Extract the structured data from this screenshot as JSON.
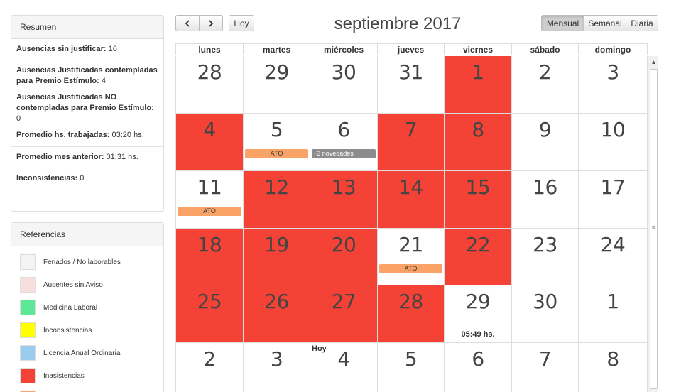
{
  "resumen": {
    "title": "Resumen",
    "rows": [
      {
        "label": "Ausencias sin justificar:",
        "value": "16"
      },
      {
        "label": "Ausencias Justificadas contempladas para Premio Estímulo:",
        "value": "4"
      },
      {
        "label": "Ausencias Justificadas NO contempladas para Premio Estímulo:",
        "value": "0"
      },
      {
        "label": "Promedio hs. trabajadas:",
        "value": "03:20 hs."
      },
      {
        "label": "Promedio mes anterior:",
        "value": "01:31 hs."
      },
      {
        "label": "Inconsistencias:",
        "value": "0"
      }
    ]
  },
  "referencias": {
    "title": "Referencias",
    "items": [
      {
        "label": "Feriados / No laborables",
        "color": "#f4f4f4"
      },
      {
        "label": "Ausentes sin Aviso",
        "color": "#f9dede"
      },
      {
        "label": "Medicina Laboral",
        "color": "#5ce897"
      },
      {
        "label": "Inconsistencias",
        "color": "#ffff00"
      },
      {
        "label": "Licencia Anual Ordinaria",
        "color": "#99ccee"
      },
      {
        "label": "Inasistencias",
        "color": "#f44336"
      },
      {
        "label": "",
        "color": "#f9a466"
      }
    ]
  },
  "toolbar": {
    "prev_icon": "chevron-left-icon",
    "next_icon": "chevron-right-icon",
    "today_label": "Hoy",
    "title": "septiembre 2017",
    "views": [
      "Mensual",
      "Semanal",
      "Diaria"
    ],
    "active_view": "Mensual"
  },
  "calendar": {
    "weekdays": [
      "lunes",
      "martes",
      "miércoles",
      "jueves",
      "viernes",
      "sábado",
      "domingo"
    ],
    "weeks": [
      [
        {
          "d": "28"
        },
        {
          "d": "29"
        },
        {
          "d": "30"
        },
        {
          "d": "31"
        },
        {
          "d": "1",
          "red": true
        },
        {
          "d": "2"
        },
        {
          "d": "3"
        }
      ],
      [
        {
          "d": "4",
          "red": true
        },
        {
          "d": "5",
          "event": "ATO",
          "etype": "ato"
        },
        {
          "d": "6",
          "event": "+3 novedades",
          "etype": "nov"
        },
        {
          "d": "7",
          "red": true
        },
        {
          "d": "8",
          "red": true
        },
        {
          "d": "9"
        },
        {
          "d": "10"
        }
      ],
      [
        {
          "d": "11",
          "event": "ATO",
          "etype": "ato"
        },
        {
          "d": "12",
          "red": true
        },
        {
          "d": "13",
          "red": true
        },
        {
          "d": "14",
          "red": true
        },
        {
          "d": "15",
          "red": true
        },
        {
          "d": "16"
        },
        {
          "d": "17"
        }
      ],
      [
        {
          "d": "18",
          "red": true
        },
        {
          "d": "19",
          "red": true
        },
        {
          "d": "20",
          "red": true
        },
        {
          "d": "21",
          "event": "ATO",
          "etype": "ato"
        },
        {
          "d": "22",
          "red": true
        },
        {
          "d": "23"
        },
        {
          "d": "24"
        }
      ],
      [
        {
          "d": "25",
          "red": true
        },
        {
          "d": "26",
          "red": true
        },
        {
          "d": "27",
          "red": true
        },
        {
          "d": "28",
          "red": true
        },
        {
          "d": "29",
          "hours": "05:49 hs."
        },
        {
          "d": "30"
        },
        {
          "d": "1"
        }
      ],
      [
        {
          "d": "2"
        },
        {
          "d": "3"
        },
        {
          "d": "4",
          "hoy": "Hoy"
        },
        {
          "d": "5"
        },
        {
          "d": "6"
        },
        {
          "d": "7"
        },
        {
          "d": "8"
        }
      ]
    ]
  },
  "scrollbar": {
    "up_icon": "arrow-up-icon",
    "grip_icon": "grip-icon"
  }
}
